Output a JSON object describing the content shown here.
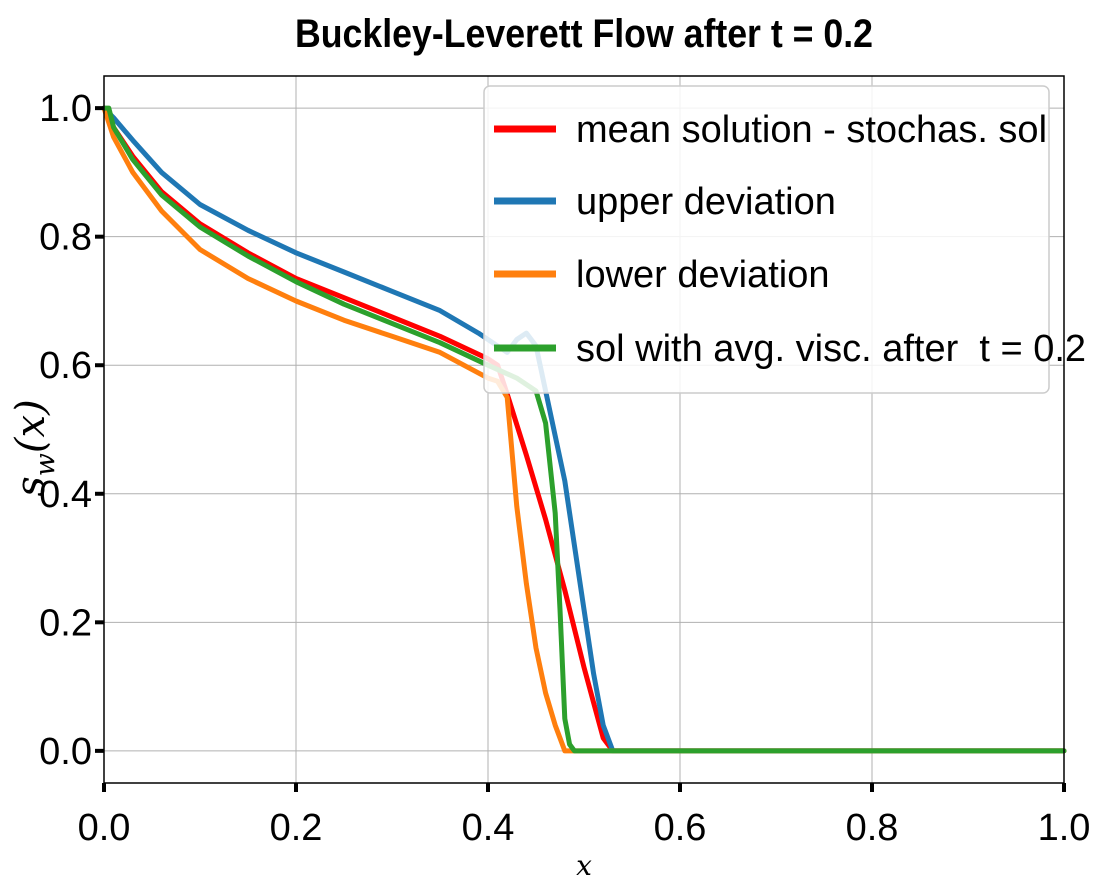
{
  "chart_data": {
    "type": "line",
    "title": "Buckley-Leverett Flow after t = 0.2",
    "xlabel": "x",
    "ylabel": "s_w(x)",
    "ylabel_main": "s",
    "ylabel_sub": "w",
    "ylabel_tail": "(x)",
    "xlim": [
      0.0,
      1.0
    ],
    "ylim": [
      -0.05,
      1.05
    ],
    "xticks": [
      0.0,
      0.2,
      0.4,
      0.6,
      0.8,
      1.0
    ],
    "xtick_labels": [
      "0.0",
      "0.2",
      "0.4",
      "0.6",
      "0.8",
      "1.0"
    ],
    "yticks": [
      0.0,
      0.2,
      0.4,
      0.6,
      0.8,
      1.0
    ],
    "ytick_labels": [
      "0.0",
      "0.2",
      "0.4",
      "0.6",
      "0.8",
      "1.0"
    ],
    "grid": true,
    "legend_position": "upper-right",
    "series": [
      {
        "name": "mean solution - stochas. sol",
        "color": "#ff0000",
        "x": [
          0.0,
          0.01,
          0.03,
          0.06,
          0.1,
          0.15,
          0.2,
          0.25,
          0.3,
          0.35,
          0.4,
          0.41,
          0.42,
          0.44,
          0.46,
          0.48,
          0.5,
          0.52,
          0.53,
          0.6,
          0.8,
          1.0
        ],
        "y": [
          1.0,
          0.97,
          0.925,
          0.87,
          0.82,
          0.775,
          0.735,
          0.705,
          0.675,
          0.645,
          0.61,
          0.6,
          0.555,
          0.46,
          0.36,
          0.25,
          0.13,
          0.02,
          0.0,
          0.0,
          0.0,
          0.0
        ]
      },
      {
        "name": "upper deviation",
        "color": "#1f77b4",
        "x": [
          0.0,
          0.01,
          0.03,
          0.06,
          0.1,
          0.15,
          0.2,
          0.25,
          0.3,
          0.35,
          0.39,
          0.42,
          0.43,
          0.44,
          0.45,
          0.46,
          0.47,
          0.48,
          0.49,
          0.5,
          0.51,
          0.52,
          0.53,
          0.6,
          0.8,
          1.0
        ],
        "y": [
          1.0,
          0.985,
          0.95,
          0.9,
          0.85,
          0.81,
          0.775,
          0.745,
          0.715,
          0.685,
          0.65,
          0.62,
          0.64,
          0.65,
          0.63,
          0.56,
          0.49,
          0.42,
          0.32,
          0.22,
          0.12,
          0.04,
          0.0,
          0.0,
          0.0,
          0.0
        ]
      },
      {
        "name": "lower deviation",
        "color": "#ff7f0e",
        "x": [
          0.0,
          0.01,
          0.03,
          0.06,
          0.1,
          0.15,
          0.2,
          0.25,
          0.3,
          0.35,
          0.4,
          0.41,
          0.42,
          0.43,
          0.44,
          0.45,
          0.46,
          0.47,
          0.48,
          0.6,
          0.8,
          1.0
        ],
        "y": [
          1.0,
          0.955,
          0.9,
          0.84,
          0.78,
          0.735,
          0.7,
          0.67,
          0.645,
          0.62,
          0.58,
          0.575,
          0.55,
          0.38,
          0.26,
          0.16,
          0.09,
          0.04,
          0.0,
          0.0,
          0.0,
          0.0
        ]
      },
      {
        "name": "sol with avg. visc. after  t = 0.2",
        "color": "#2ca02c",
        "x": [
          0.0,
          0.005,
          0.01,
          0.03,
          0.06,
          0.1,
          0.15,
          0.2,
          0.25,
          0.3,
          0.35,
          0.4,
          0.43,
          0.45,
          0.46,
          0.47,
          0.475,
          0.48,
          0.485,
          0.49,
          0.5,
          0.6,
          0.8,
          1.0
        ],
        "y": [
          1.0,
          1.0,
          0.97,
          0.92,
          0.865,
          0.815,
          0.77,
          0.73,
          0.695,
          0.665,
          0.635,
          0.6,
          0.58,
          0.56,
          0.51,
          0.37,
          0.22,
          0.05,
          0.01,
          0.0,
          0.0,
          0.0,
          0.0,
          0.0
        ]
      }
    ]
  }
}
